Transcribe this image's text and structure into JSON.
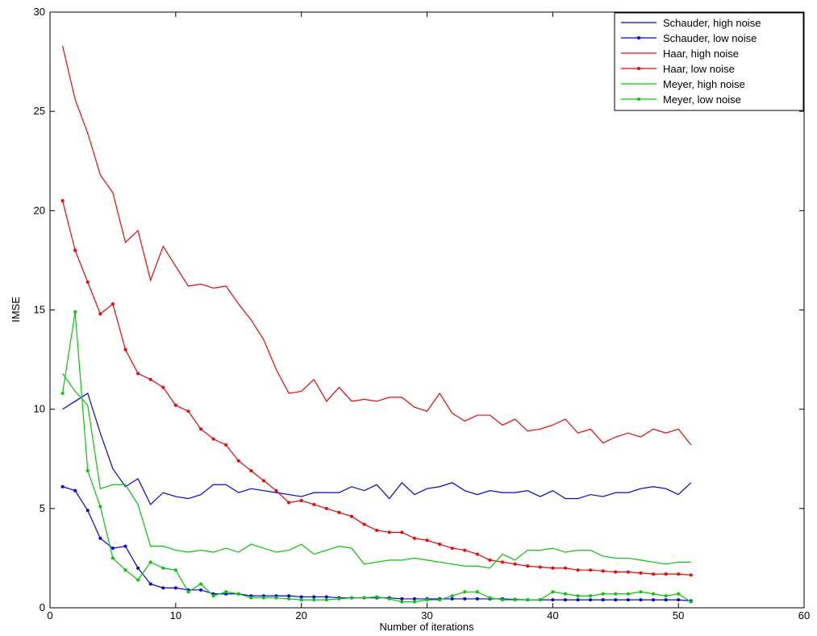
{
  "chart_data": {
    "type": "line",
    "title": "",
    "xlabel": "Number of iterations",
    "ylabel": "IMSE",
    "xlim": [
      0,
      60
    ],
    "ylim": [
      0,
      30
    ],
    "xticks": [
      0,
      10,
      20,
      30,
      40,
      50,
      60
    ],
    "yticks": [
      0,
      5,
      10,
      15,
      20,
      25,
      30
    ],
    "grid": false,
    "legend_position": "top-right",
    "x": [
      1,
      2,
      3,
      4,
      5,
      6,
      7,
      8,
      9,
      10,
      11,
      12,
      13,
      14,
      15,
      16,
      17,
      18,
      19,
      20,
      21,
      22,
      23,
      24,
      25,
      26,
      27,
      28,
      29,
      30,
      31,
      32,
      33,
      34,
      35,
      36,
      37,
      38,
      39,
      40,
      41,
      42,
      43,
      44,
      45,
      46,
      47,
      48,
      49,
      50,
      51
    ],
    "series": [
      {
        "name": "Schauder, high noise",
        "color": "#0000ff",
        "marker": false,
        "values": [
          10.0,
          10.4,
          10.8,
          8.8,
          7.0,
          6.1,
          6.5,
          5.2,
          5.8,
          5.6,
          5.5,
          5.7,
          6.2,
          6.2,
          5.8,
          6.0,
          5.9,
          5.8,
          5.7,
          5.6,
          5.8,
          5.8,
          5.8,
          6.1,
          5.9,
          6.2,
          5.5,
          6.3,
          5.7,
          6.0,
          6.1,
          6.3,
          5.9,
          5.7,
          5.9,
          5.8,
          5.8,
          5.9,
          5.6,
          5.9,
          5.5,
          5.5,
          5.7,
          5.6,
          5.8,
          5.8,
          6.0,
          6.1,
          6.0,
          5.7,
          6.3
        ]
      },
      {
        "name": "Schauder, low noise",
        "color": "#0000ff",
        "marker": true,
        "values": [
          6.1,
          5.9,
          4.9,
          3.5,
          3.0,
          3.1,
          2.0,
          1.2,
          1.0,
          1.0,
          0.9,
          0.9,
          0.7,
          0.7,
          0.7,
          0.6,
          0.6,
          0.6,
          0.6,
          0.55,
          0.55,
          0.55,
          0.5,
          0.5,
          0.5,
          0.5,
          0.5,
          0.45,
          0.45,
          0.45,
          0.45,
          0.45,
          0.45,
          0.45,
          0.45,
          0.45,
          0.42,
          0.4,
          0.4,
          0.4,
          0.4,
          0.4,
          0.4,
          0.4,
          0.4,
          0.4,
          0.4,
          0.4,
          0.4,
          0.4,
          0.35
        ]
      },
      {
        "name": "Haar, high noise",
        "color": "#ff0000",
        "marker": false,
        "values": [
          28.3,
          25.6,
          23.9,
          21.8,
          20.9,
          18.4,
          19.0,
          16.5,
          18.2,
          17.2,
          16.2,
          16.3,
          16.1,
          16.2,
          15.3,
          14.5,
          13.5,
          12.0,
          10.8,
          10.9,
          11.5,
          10.4,
          11.1,
          10.4,
          10.5,
          10.4,
          10.6,
          10.6,
          10.1,
          9.9,
          10.8,
          9.8,
          9.4,
          9.7,
          9.7,
          9.2,
          9.5,
          8.9,
          9.0,
          9.2,
          9.5,
          8.8,
          9.0,
          8.3,
          8.6,
          8.8,
          8.6,
          9.0,
          8.8,
          9.0,
          8.2
        ]
      },
      {
        "name": "Haar, low noise",
        "color": "#ff0000",
        "marker": true,
        "values": [
          20.5,
          18.0,
          16.4,
          14.8,
          15.3,
          13.0,
          11.8,
          11.5,
          11.1,
          10.2,
          9.9,
          9.0,
          8.5,
          8.2,
          7.4,
          6.9,
          6.4,
          5.9,
          5.3,
          5.4,
          5.2,
          5.0,
          4.8,
          4.6,
          4.2,
          3.9,
          3.8,
          3.8,
          3.5,
          3.4,
          3.2,
          3.0,
          2.9,
          2.7,
          2.4,
          2.3,
          2.2,
          2.1,
          2.05,
          2.0,
          2.0,
          1.9,
          1.9,
          1.85,
          1.8,
          1.8,
          1.75,
          1.7,
          1.7,
          1.7,
          1.65
        ]
      },
      {
        "name": "Meyer, high noise",
        "color": "#00cc00",
        "marker": false,
        "values": [
          11.8,
          10.9,
          10.2,
          6.0,
          6.2,
          6.2,
          5.2,
          3.1,
          3.1,
          2.9,
          2.8,
          2.9,
          2.8,
          3.0,
          2.8,
          3.2,
          3.0,
          2.8,
          2.9,
          3.2,
          2.7,
          2.9,
          3.1,
          3.0,
          2.2,
          2.3,
          2.4,
          2.4,
          2.5,
          2.4,
          2.3,
          2.2,
          2.1,
          2.1,
          2.0,
          2.7,
          2.4,
          2.9,
          2.9,
          3.0,
          2.8,
          2.9,
          2.9,
          2.6,
          2.5,
          2.5,
          2.4,
          2.3,
          2.2,
          2.3,
          2.3
        ]
      },
      {
        "name": "Meyer, low noise",
        "color": "#00cc00",
        "marker": true,
        "values": [
          10.8,
          14.9,
          6.9,
          5.1,
          2.5,
          1.9,
          1.4,
          2.3,
          2.0,
          1.9,
          0.8,
          1.2,
          0.6,
          0.8,
          0.7,
          0.5,
          0.5,
          0.5,
          0.45,
          0.4,
          0.4,
          0.4,
          0.45,
          0.5,
          0.5,
          0.55,
          0.45,
          0.3,
          0.3,
          0.4,
          0.4,
          0.6,
          0.8,
          0.8,
          0.5,
          0.4,
          0.4,
          0.4,
          0.4,
          0.8,
          0.7,
          0.6,
          0.6,
          0.7,
          0.7,
          0.7,
          0.8,
          0.7,
          0.6,
          0.7,
          0.3
        ]
      }
    ]
  }
}
